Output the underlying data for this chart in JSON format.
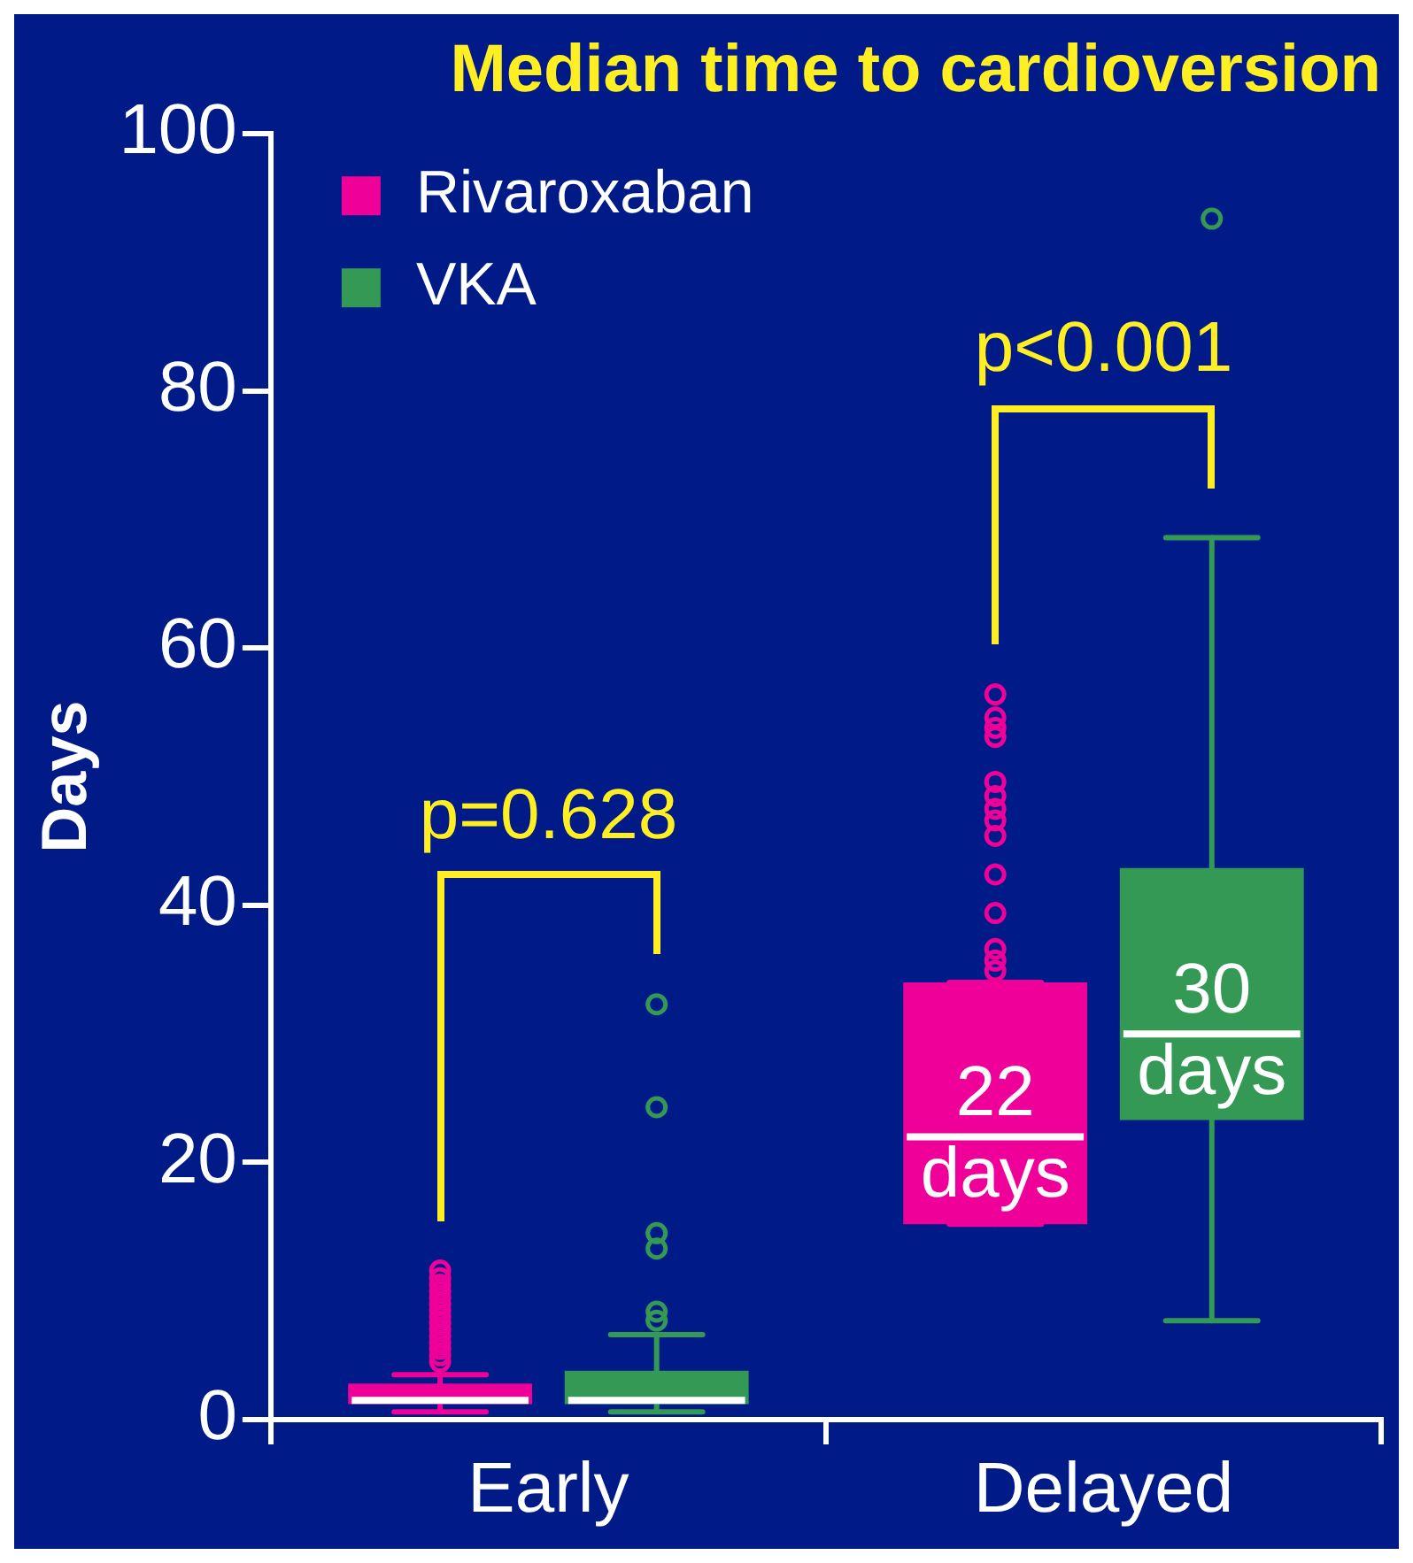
{
  "chart_data": {
    "type": "box",
    "title": "Median time to cardioversion",
    "ylabel": "Days",
    "categories": [
      "Early",
      "Delayed"
    ],
    "series": [
      {
        "name": "Rivaroxaban",
        "color": "#ee0099",
        "value_labels": [
          null,
          "22 days"
        ],
        "boxes": [
          {
            "low": 0.6,
            "q1": 1.2,
            "median": 1.5,
            "q3": 2.8,
            "high": 3.5,
            "outliers": [
              4.5,
              5,
              5.5,
              6,
              6.5,
              7,
              7.5,
              8,
              8.5,
              9,
              9.5,
              10,
              10.5,
              11,
              11.6
            ]
          },
          {
            "low": 15.2,
            "q1": 15.2,
            "median": 22,
            "q3": 34,
            "high": 34,
            "outliers": [
              34.9,
              35.7,
              36.6,
              39.4,
              42.4,
              45.4,
              46.6,
              47.5,
              48.5,
              49.6,
              53.1,
              53.8,
              54.6,
              56.4
            ]
          }
        ]
      },
      {
        "name": "VKA",
        "color": "#339955",
        "value_labels": [
          null,
          "30 days"
        ],
        "boxes": [
          {
            "low": 0.6,
            "q1": 1.2,
            "median": 1.5,
            "q3": 3.8,
            "high": 6.6,
            "outliers": [
              7.7,
              8.4,
              13.3,
              14.5,
              24.3,
              32.3
            ]
          },
          {
            "low": 7.7,
            "q1": 23.3,
            "median": 30,
            "q3": 42.9,
            "high": 68.6,
            "outliers": [
              93.4
            ]
          }
        ]
      }
    ],
    "annotations": [
      "p=0.628",
      "p<0.001"
    ],
    "ylim": [
      0,
      100
    ],
    "yticks": [
      0,
      20,
      40,
      60,
      80,
      100
    ],
    "grid": false,
    "legend": "top left"
  }
}
